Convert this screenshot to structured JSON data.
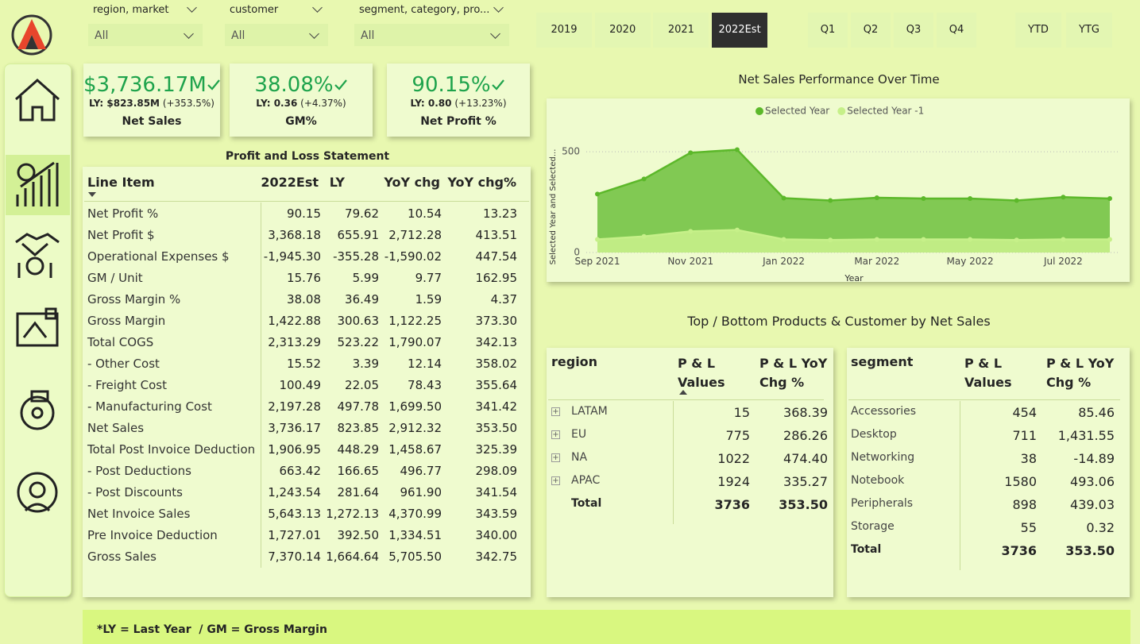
{
  "filters": [
    {
      "label": "region, market",
      "value": "All"
    },
    {
      "label": "customer",
      "value": "All"
    },
    {
      "label": "segment, category, pro...",
      "value": "All"
    }
  ],
  "years": [
    "2019",
    "2020",
    "2021",
    "2022Est"
  ],
  "quarters": [
    "Q1",
    "Q2",
    "Q3",
    "Q4"
  ],
  "periods": [
    "YTD",
    "YTG"
  ],
  "kpis": [
    {
      "value": "$3,736.17M",
      "ly": "LY: $823.85M",
      "change": "(+353.5%)",
      "label": "Net Sales"
    },
    {
      "value": "38.08%",
      "ly": "LY: 0.36",
      "change": "(+4.37%)",
      "label": "GM%"
    },
    {
      "value": "90.15%",
      "ly": "LY: 0.80",
      "change": "(+13.23%)",
      "label": "Net Profit %"
    }
  ],
  "pl_table": {
    "title": "Profit and Loss Statement",
    "columns": [
      "Line Item",
      "2022Est",
      "LY",
      "YoY chg",
      "YoY chg%"
    ],
    "rows": [
      [
        "Net Profit %",
        "90.15",
        "79.62",
        "10.54",
        "13.23"
      ],
      [
        "Net Profit $",
        "3,368.18",
        "655.91",
        "2,712.28",
        "413.51"
      ],
      [
        "Operational Expenses $",
        "-1,945.30",
        "-355.28",
        "-1,590.02",
        "447.54"
      ],
      [
        "GM / Unit",
        "15.76",
        "5.99",
        "9.77",
        "162.95"
      ],
      [
        "Gross Margin %",
        "38.08",
        "36.49",
        "1.59",
        "4.37"
      ],
      [
        "Gross Margin",
        "1,422.88",
        "300.63",
        "1,122.25",
        "373.30"
      ],
      [
        "Total COGS",
        "2,313.29",
        "523.22",
        "1,790.07",
        "342.13"
      ],
      [
        "- Other Cost",
        "15.52",
        "3.39",
        "12.14",
        "358.02"
      ],
      [
        "- Freight Cost",
        "100.49",
        "22.05",
        "78.43",
        "355.64"
      ],
      [
        "- Manufacturing Cost",
        "2,197.28",
        "497.78",
        "1,699.50",
        "341.42"
      ],
      [
        "Net Sales",
        "3,736.17",
        "823.85",
        "2,912.32",
        "353.50"
      ],
      [
        "Total Post Invoice Deduction",
        "1,906.95",
        "448.29",
        "1,458.67",
        "325.39"
      ],
      [
        "- Post Deductions",
        "663.42",
        "166.65",
        "496.77",
        "298.09"
      ],
      [
        "- Post Discounts",
        "1,243.54",
        "281.64",
        "961.90",
        "341.54"
      ],
      [
        "Net Invoice Sales",
        "5,643.13",
        "1,272.13",
        "4,370.99",
        "343.59"
      ],
      [
        "Pre Invoice Deduction",
        "1,727.01",
        "392.50",
        "1,334.51",
        "340.00"
      ],
      [
        "Gross Sales",
        "7,370.14",
        "1,664.64",
        "5,705.50",
        "342.75"
      ]
    ]
  },
  "chart_data": {
    "type": "area",
    "title": "Net Sales Performance Over Time",
    "x_label": "Year",
    "y_label": "Selected Year and Selected...",
    "categories": [
      "Sep 2021",
      null,
      "Nov 2021",
      null,
      "Jan 2022",
      null,
      "Mar 2022",
      null,
      "May 2022",
      null,
      "Jul 2022",
      null
    ],
    "series": [
      {
        "name": "Selected Year",
        "color": "#5cb82a",
        "values": [
          290,
          365,
          495,
          510,
          270,
          258,
          272,
          268,
          268,
          258,
          275,
          268
        ]
      },
      {
        "name": "Selected Year -1",
        "color": "#c6f089",
        "values": [
          65,
          80,
          105,
          112,
          65,
          62,
          65,
          65,
          65,
          62,
          65,
          65
        ]
      }
    ],
    "ylim": [
      0,
      650
    ],
    "yticks": [
      0,
      500
    ],
    "grid": true,
    "legend": "top"
  },
  "top_bottom": {
    "title": "Top / Bottom Products & Customer by Net Sales",
    "region_table": {
      "columns": [
        "region",
        "P & L Values",
        "P & L YoY Chg %"
      ],
      "rows": [
        [
          "LATAM",
          "15",
          "368.39"
        ],
        [
          "EU",
          "775",
          "286.26"
        ],
        [
          "NA",
          "1022",
          "474.40"
        ],
        [
          "APAC",
          "1924",
          "335.27"
        ]
      ],
      "total": [
        "Total",
        "3736",
        "353.50"
      ]
    },
    "segment_table": {
      "columns": [
        "segment",
        "P & L Values",
        "P & L YoY Chg %"
      ],
      "rows": [
        [
          "Accessories",
          "454",
          "85.46"
        ],
        [
          "Desktop",
          "711",
          "1,431.55"
        ],
        [
          "Networking",
          "38",
          "-14.89"
        ],
        [
          "Notebook",
          "1580",
          "493.06"
        ],
        [
          "Peripherals",
          "898",
          "439.03"
        ],
        [
          "Storage",
          "55",
          "0.32"
        ]
      ],
      "total": [
        "Total",
        "3736",
        "353.50"
      ]
    }
  },
  "footnote": "*LY = Last Year  / GM = Gross Margin"
}
